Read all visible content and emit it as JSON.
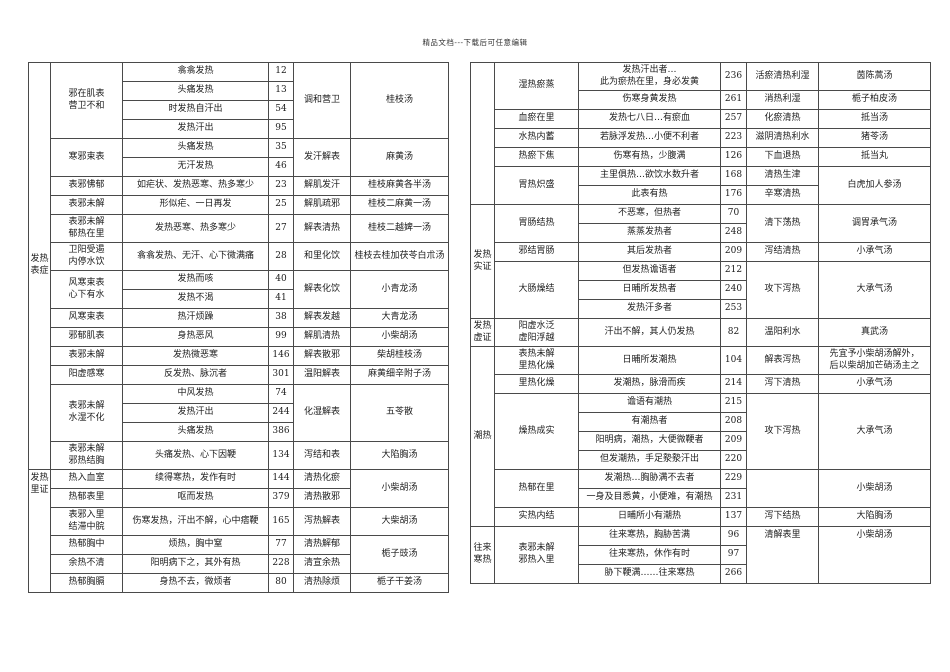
{
  "page": {
    "header": "精品文档---下载后可任意编辑"
  },
  "left_table": {
    "rows": [
      {
        "cells": [
          {
            "c": 0,
            "t": "发热\n表症",
            "rs": 20
          },
          {
            "c": 1,
            "t": "邪在肌表\n营卫不和",
            "rs": 4
          },
          {
            "c": 2,
            "t": "翕翕发热"
          },
          {
            "c": 3,
            "t": "12"
          },
          {
            "c": 4,
            "t": "调和营卫",
            "rs": 4
          },
          {
            "c": 5,
            "t": "桂枝汤",
            "rs": 4
          }
        ]
      },
      {
        "cells": [
          {
            "c": 2,
            "t": "头痛发热"
          },
          {
            "c": 3,
            "t": "13"
          }
        ]
      },
      {
        "cells": [
          {
            "c": 2,
            "t": "时发热自汗出"
          },
          {
            "c": 3,
            "t": "54"
          }
        ]
      },
      {
        "cells": [
          {
            "c": 2,
            "t": "发热汗出"
          },
          {
            "c": 3,
            "t": "95"
          }
        ]
      },
      {
        "cells": [
          {
            "c": 1,
            "t": "寒邪束表",
            "rs": 2
          },
          {
            "c": 2,
            "t": "头痛发热"
          },
          {
            "c": 3,
            "t": "35"
          },
          {
            "c": 4,
            "t": "发汗解表",
            "rs": 2
          },
          {
            "c": 5,
            "t": "麻黄汤",
            "rs": 2
          }
        ]
      },
      {
        "cells": [
          {
            "c": 2,
            "t": "无汗发热"
          },
          {
            "c": 3,
            "t": "46"
          }
        ]
      },
      {
        "cells": [
          {
            "c": 1,
            "t": "表邪怫郁"
          },
          {
            "c": 2,
            "t": "如疟状、发热恶寒、热多寒少"
          },
          {
            "c": 3,
            "t": "23"
          },
          {
            "c": 4,
            "t": "解肌发汗"
          },
          {
            "c": 5,
            "t": "桂枝麻黄各半汤"
          }
        ]
      },
      {
        "cells": [
          {
            "c": 1,
            "t": "表邪未解"
          },
          {
            "c": 2,
            "t": "形似疟、一日再发"
          },
          {
            "c": 3,
            "t": "25"
          },
          {
            "c": 4,
            "t": "解肌疏邪"
          },
          {
            "c": 5,
            "t": "桂枝二麻黄一汤"
          }
        ]
      },
      {
        "tall": true,
        "cells": [
          {
            "c": 1,
            "t": "表邪未解\n郁热在里"
          },
          {
            "c": 2,
            "t": "发热恶寒、热多寒少"
          },
          {
            "c": 3,
            "t": "27"
          },
          {
            "c": 4,
            "t": "解表清热"
          },
          {
            "c": 5,
            "t": "桂枝二越婢一汤"
          }
        ]
      },
      {
        "tall": true,
        "cells": [
          {
            "c": 1,
            "t": "卫阳受遏\n内停水饮"
          },
          {
            "c": 2,
            "t": "翕翕发热、无汗、心下微满痛"
          },
          {
            "c": 3,
            "t": "28"
          },
          {
            "c": 4,
            "t": "和里化饮"
          },
          {
            "c": 5,
            "t": "桂枝去桂加茯苓白朮汤"
          }
        ]
      },
      {
        "cells": [
          {
            "c": 1,
            "t": "风寒束表\n心下有水",
            "rs": 2
          },
          {
            "c": 2,
            "t": "发热而咳"
          },
          {
            "c": 3,
            "t": "40"
          },
          {
            "c": 4,
            "t": "解表化饮",
            "rs": 2
          },
          {
            "c": 5,
            "t": "小青龙汤",
            "rs": 2
          }
        ]
      },
      {
        "cells": [
          {
            "c": 2,
            "t": "发热不渴"
          },
          {
            "c": 3,
            "t": "41"
          }
        ]
      },
      {
        "cells": [
          {
            "c": 1,
            "t": "风寒束表"
          },
          {
            "c": 2,
            "t": "热汗烦躁"
          },
          {
            "c": 3,
            "t": "38"
          },
          {
            "c": 4,
            "t": "解表发越"
          },
          {
            "c": 5,
            "t": "大青龙汤"
          }
        ]
      },
      {
        "cells": [
          {
            "c": 1,
            "t": "邪郁肌表"
          },
          {
            "c": 2,
            "t": "身热恶风"
          },
          {
            "c": 3,
            "t": "99"
          },
          {
            "c": 4,
            "t": "解肌清热"
          },
          {
            "c": 5,
            "t": "小柴胡汤"
          }
        ]
      },
      {
        "cells": [
          {
            "c": 1,
            "t": "表邪未解"
          },
          {
            "c": 2,
            "t": "发热微恶寒"
          },
          {
            "c": 3,
            "t": "146"
          },
          {
            "c": 4,
            "t": "解表散邪"
          },
          {
            "c": 5,
            "t": "柴胡桂枝汤"
          }
        ]
      },
      {
        "cells": [
          {
            "c": 1,
            "t": "阳虚感寒"
          },
          {
            "c": 2,
            "t": "反发热、脉沉者"
          },
          {
            "c": 3,
            "t": "301"
          },
          {
            "c": 4,
            "t": "温阳解表"
          },
          {
            "c": 5,
            "t": "麻黄细辛附子汤"
          }
        ]
      },
      {
        "cells": [
          {
            "c": 1,
            "t": "表邪未解\n水湿不化",
            "rs": 3
          },
          {
            "c": 2,
            "t": "中风发热"
          },
          {
            "c": 3,
            "t": "74"
          },
          {
            "c": 4,
            "t": "化湿解表",
            "rs": 3
          },
          {
            "c": 5,
            "t": "五苓散",
            "rs": 3
          }
        ]
      },
      {
        "cells": [
          {
            "c": 2,
            "t": "发热汗出"
          },
          {
            "c": 3,
            "t": "244"
          }
        ]
      },
      {
        "cells": [
          {
            "c": 2,
            "t": "头痛发热"
          },
          {
            "c": 3,
            "t": "386"
          }
        ]
      },
      {
        "tall": true,
        "cells": [
          {
            "c": 1,
            "t": "表邪未解\n邪热结胸"
          },
          {
            "c": 2,
            "t": "头痛发热、心下因鞕"
          },
          {
            "c": 3,
            "t": "134"
          },
          {
            "c": 4,
            "t": "泻结和表"
          },
          {
            "c": 5,
            "t": "大陷胸汤"
          }
        ]
      },
      {
        "cells": [
          {
            "c": 0,
            "t": "发热\n里证",
            "rs": 6,
            "va": "top"
          },
          {
            "c": 1,
            "t": "热入血室"
          },
          {
            "c": 2,
            "t": "续得寒热，发作有时"
          },
          {
            "c": 3,
            "t": "144"
          },
          {
            "c": 4,
            "t": "清热化瘀"
          },
          {
            "c": 5,
            "t": "小柴胡汤",
            "rs": 2
          }
        ]
      },
      {
        "cells": [
          {
            "c": 1,
            "t": "热郁表里"
          },
          {
            "c": 2,
            "t": "呕而发热"
          },
          {
            "c": 3,
            "t": "379"
          },
          {
            "c": 4,
            "t": "清热散邪"
          }
        ]
      },
      {
        "tall": true,
        "cells": [
          {
            "c": 1,
            "t": "表邪入里\n结滞中脘"
          },
          {
            "c": 2,
            "t": "伤寒发热，汗出不解，心中痞鞕"
          },
          {
            "c": 3,
            "t": "165"
          },
          {
            "c": 4,
            "t": "泻热解表"
          },
          {
            "c": 5,
            "t": "大柴胡汤"
          }
        ]
      },
      {
        "cells": [
          {
            "c": 1,
            "t": "热郁胸中"
          },
          {
            "c": 2,
            "t": "烦热，胸中窒"
          },
          {
            "c": 3,
            "t": "77"
          },
          {
            "c": 4,
            "t": "清热解郁"
          },
          {
            "c": 5,
            "t": "栀子豉汤",
            "rs": 2
          }
        ]
      },
      {
        "cells": [
          {
            "c": 1,
            "t": "余热不清"
          },
          {
            "c": 2,
            "t": "阳明病下之，其外有热"
          },
          {
            "c": 3,
            "t": "228"
          },
          {
            "c": 4,
            "t": "清宣余热"
          }
        ]
      },
      {
        "cells": [
          {
            "c": 1,
            "t": "热郁胸膈"
          },
          {
            "c": 2,
            "t": "身热不去，微烦者"
          },
          {
            "c": 3,
            "t": "80"
          },
          {
            "c": 4,
            "t": "清热除烦"
          },
          {
            "c": 5,
            "t": "栀子干姜汤"
          }
        ]
      }
    ]
  },
  "right_table": {
    "rows": [
      {
        "tall": true,
        "cells": [
          {
            "c": 0,
            "t": "",
            "rs": 7
          },
          {
            "c": 1,
            "t": "湿热瘀蒸",
            "rs": 2
          },
          {
            "c": 2,
            "t": "发热汗出者…\n此为瘀热在里，身必发黄"
          },
          {
            "c": 3,
            "t": "236"
          },
          {
            "c": 4,
            "t": "活瘀清热利湿"
          },
          {
            "c": 5,
            "t": "茵陈蒿汤"
          }
        ]
      },
      {
        "cells": [
          {
            "c": 2,
            "t": "伤寒身黄发热"
          },
          {
            "c": 3,
            "t": "261"
          },
          {
            "c": 4,
            "t": "消热利湿"
          },
          {
            "c": 5,
            "t": "栀子柏皮汤"
          }
        ]
      },
      {
        "cells": [
          {
            "c": 1,
            "t": "血瘀在里"
          },
          {
            "c": 2,
            "t": "发热七八日…有瘀血"
          },
          {
            "c": 3,
            "t": "257"
          },
          {
            "c": 4,
            "t": "化瘀清热"
          },
          {
            "c": 5,
            "t": "抵当汤"
          }
        ]
      },
      {
        "cells": [
          {
            "c": 1,
            "t": "水热内蓄"
          },
          {
            "c": 2,
            "t": "若脉浮发热…小便不利者"
          },
          {
            "c": 3,
            "t": "223"
          },
          {
            "c": 4,
            "t": "滋阴清热利水"
          },
          {
            "c": 5,
            "t": "猪苓汤"
          }
        ]
      },
      {
        "cells": [
          {
            "c": 1,
            "t": "热瘀下焦"
          },
          {
            "c": 2,
            "t": "伤寒有热，少腹满"
          },
          {
            "c": 3,
            "t": "126"
          },
          {
            "c": 4,
            "t": "下血退热"
          },
          {
            "c": 5,
            "t": "抵当丸"
          }
        ]
      },
      {
        "cells": [
          {
            "c": 1,
            "t": "胃热炽盛",
            "rs": 2
          },
          {
            "c": 2,
            "t": "主里俱热…欲饮水数升者"
          },
          {
            "c": 3,
            "t": "168"
          },
          {
            "c": 4,
            "t": "清热生津"
          },
          {
            "c": 5,
            "t": "白虎加人参汤",
            "rs": 2
          }
        ]
      },
      {
        "cells": [
          {
            "c": 2,
            "t": "此表有热"
          },
          {
            "c": 3,
            "t": "176"
          },
          {
            "c": 4,
            "t": "辛寒清热"
          }
        ]
      },
      {
        "cells": [
          {
            "c": 0,
            "t": "发热\n实证",
            "rs": 6
          },
          {
            "c": 1,
            "t": "胃肠结热",
            "rs": 2
          },
          {
            "c": 2,
            "t": "不恶寒，但热者"
          },
          {
            "c": 3,
            "t": "70"
          },
          {
            "c": 4,
            "t": "清下荡热",
            "rs": 2
          },
          {
            "c": 5,
            "t": "调胃承气汤",
            "rs": 2
          }
        ]
      },
      {
        "cells": [
          {
            "c": 2,
            "t": "蒸蒸发热者"
          },
          {
            "c": 3,
            "t": "248"
          }
        ]
      },
      {
        "cells": [
          {
            "c": 1,
            "t": "邪结胃肠"
          },
          {
            "c": 2,
            "t": "其后发热者"
          },
          {
            "c": 3,
            "t": "209"
          },
          {
            "c": 4,
            "t": "泻结清热"
          },
          {
            "c": 5,
            "t": "小承气汤"
          }
        ]
      },
      {
        "cells": [
          {
            "c": 1,
            "t": "大肠燥结",
            "rs": 3
          },
          {
            "c": 2,
            "t": "但发热谵语者"
          },
          {
            "c": 3,
            "t": "212"
          },
          {
            "c": 4,
            "t": "攻下泻热",
            "rs": 3
          },
          {
            "c": 5,
            "t": "大承气汤",
            "rs": 3
          }
        ]
      },
      {
        "cells": [
          {
            "c": 2,
            "t": "日晡所发热者"
          },
          {
            "c": 3,
            "t": "240"
          }
        ]
      },
      {
        "cells": [
          {
            "c": 2,
            "t": "发热汗多者"
          },
          {
            "c": 3,
            "t": "253"
          }
        ]
      },
      {
        "tall": true,
        "cells": [
          {
            "c": 0,
            "t": "发热\n虚证"
          },
          {
            "c": 1,
            "t": "阳虚水泛\n虚阳浮越"
          },
          {
            "c": 2,
            "t": "汗出不解，其人仍发热"
          },
          {
            "c": 3,
            "t": "82"
          },
          {
            "c": 4,
            "t": "温阳利水"
          },
          {
            "c": 5,
            "t": "真武汤"
          }
        ]
      },
      {
        "tall": true,
        "cells": [
          {
            "c": 0,
            "t": "潮热",
            "rs": 9
          },
          {
            "c": 1,
            "t": "表热未解\n里热化燥"
          },
          {
            "c": 2,
            "t": "日晡所发潮热"
          },
          {
            "c": 3,
            "t": "104"
          },
          {
            "c": 4,
            "t": "解表泻热"
          },
          {
            "c": 5,
            "t": "先宜予小柴胡汤解外，\n后以柴胡加芒硝汤主之"
          }
        ]
      },
      {
        "cells": [
          {
            "c": 1,
            "t": "里热化燥"
          },
          {
            "c": 2,
            "t": "发潮热，脉滑而疾"
          },
          {
            "c": 3,
            "t": "214"
          },
          {
            "c": 4,
            "t": "泻下清热"
          },
          {
            "c": 5,
            "t": "小承气汤"
          }
        ]
      },
      {
        "cells": [
          {
            "c": 1,
            "t": "燥热成实",
            "rs": 4
          },
          {
            "c": 2,
            "t": "谵语有潮热"
          },
          {
            "c": 3,
            "t": "215"
          },
          {
            "c": 4,
            "t": "攻下泻热",
            "rs": 4
          },
          {
            "c": 5,
            "t": "大承气汤",
            "rs": 4
          }
        ]
      },
      {
        "cells": [
          {
            "c": 2,
            "t": "有潮热者"
          },
          {
            "c": 3,
            "t": "208"
          }
        ]
      },
      {
        "cells": [
          {
            "c": 2,
            "t": "阳明病，潮热，大便微鞕者"
          },
          {
            "c": 3,
            "t": "209"
          }
        ]
      },
      {
        "cells": [
          {
            "c": 2,
            "t": "但发潮热，手足漐漐汗出"
          },
          {
            "c": 3,
            "t": "220"
          }
        ]
      },
      {
        "cells": [
          {
            "c": 1,
            "t": "热郁在里",
            "rs": 2
          },
          {
            "c": 2,
            "t": "发潮热…胸胁满不去者"
          },
          {
            "c": 3,
            "t": "229"
          },
          {
            "c": 4,
            "t": "",
            "rs": 2
          },
          {
            "c": 5,
            "t": "小柴胡汤",
            "rs": 2
          }
        ]
      },
      {
        "cells": [
          {
            "c": 2,
            "t": "一身及目悉黄，小便难，有潮热"
          },
          {
            "c": 3,
            "t": "231"
          }
        ]
      },
      {
        "cells": [
          {
            "c": 1,
            "t": "实热内结"
          },
          {
            "c": 2,
            "t": "日晡所小有潮热"
          },
          {
            "c": 3,
            "t": "137"
          },
          {
            "c": 4,
            "t": "泻下结热"
          },
          {
            "c": 5,
            "t": "大陷胸汤"
          }
        ]
      },
      {
        "cells": [
          {
            "c": 0,
            "t": "往来\n寒热",
            "rs": 3
          },
          {
            "c": 1,
            "t": "表邪未解\n邪热入里",
            "rs": 3
          },
          {
            "c": 2,
            "t": "往来寒热，胸胁苦满"
          },
          {
            "c": 3,
            "t": "96"
          },
          {
            "c": 4,
            "t": "清解表里",
            "rs": 3,
            "va": "top"
          },
          {
            "c": 5,
            "t": "小柴胡汤",
            "rs": 3,
            "va": "top"
          }
        ]
      },
      {
        "cells": [
          {
            "c": 2,
            "t": "往来寒热，休作有时"
          },
          {
            "c": 3,
            "t": "97"
          }
        ]
      },
      {
        "cells": [
          {
            "c": 2,
            "t": "胁下鞕满……往来寒热"
          },
          {
            "c": 3,
            "t": "266"
          }
        ]
      }
    ]
  }
}
